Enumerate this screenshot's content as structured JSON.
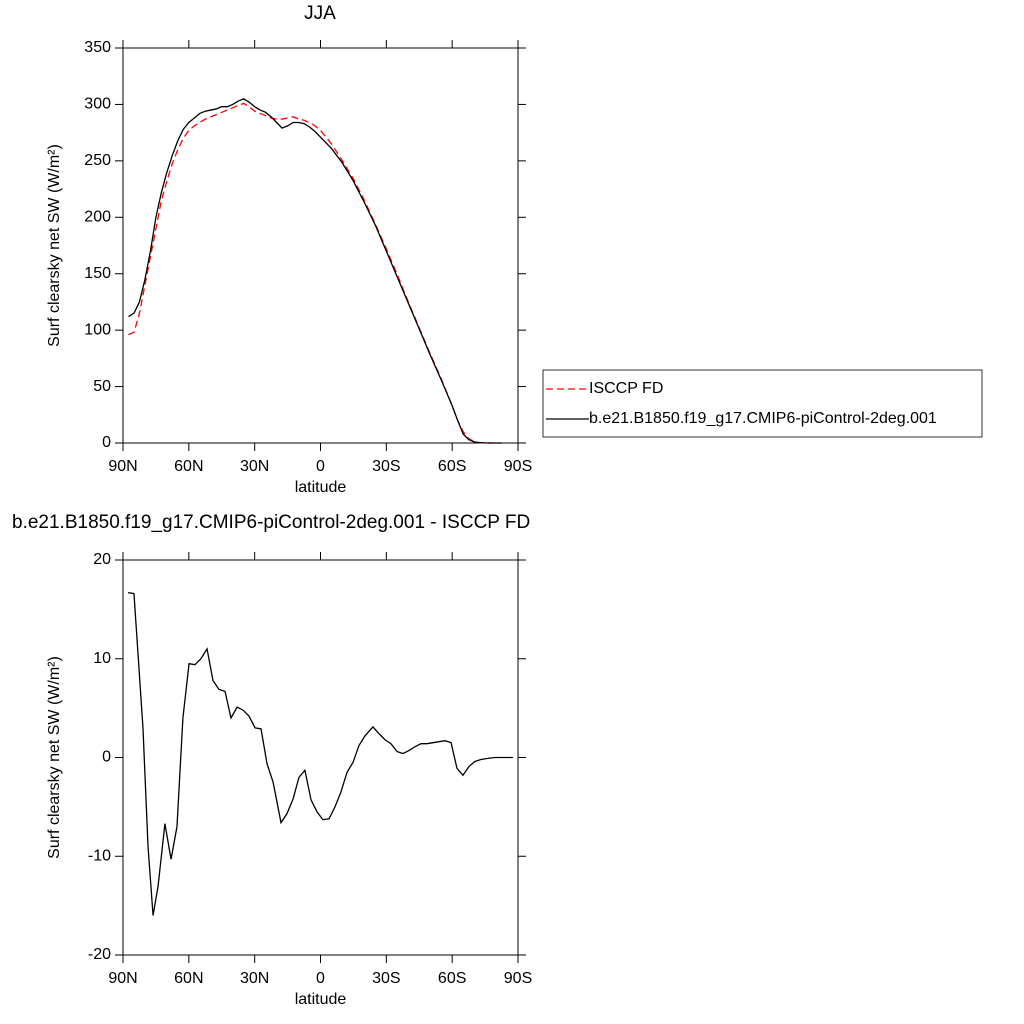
{
  "chart_data": [
    {
      "type": "line",
      "title": "JJA",
      "xlabel": "latitude",
      "ylabel": "Surf clearsky net SW (W/m²)",
      "xlim": [
        90,
        -90
      ],
      "xticks": [
        {
          "value": 90,
          "label": "90N"
        },
        {
          "value": 60,
          "label": "60N"
        },
        {
          "value": 30,
          "label": "30N"
        },
        0,
        {
          "value": -30,
          "label": "30S"
        },
        {
          "value": -60,
          "label": "60S"
        },
        {
          "value": -90,
          "label": "90S"
        }
      ],
      "ylim": [
        0,
        350
      ],
      "yticks": [
        0,
        50,
        100,
        150,
        200,
        250,
        300,
        350
      ],
      "legend": "right",
      "x": [
        87.5,
        85,
        82.5,
        80,
        77.5,
        75,
        72.5,
        70,
        67.5,
        65,
        62.5,
        60,
        57.5,
        55,
        52.5,
        50,
        47.5,
        45,
        42.5,
        40,
        37.5,
        35,
        32.5,
        30,
        27.5,
        25,
        22.5,
        20,
        17.5,
        15,
        12.5,
        10,
        7.5,
        5,
        2.5,
        0,
        -5,
        -10,
        -15,
        -20,
        -25,
        -30,
        -35,
        -40,
        -45,
        -50,
        -55,
        -60,
        -62.5,
        -65,
        -67.5,
        -70,
        -72.5,
        -75,
        -77.5,
        -80,
        -82.5
      ],
      "series": [
        {
          "name": "ISCCP FD",
          "color": "#ff0000",
          "line_style": "dashed",
          "values": [
            96,
            98,
            115,
            140,
            165,
            190,
            215,
            232,
            248,
            260,
            270,
            277,
            281,
            284,
            287,
            289,
            291,
            293,
            295,
            297,
            299,
            301,
            298,
            294,
            292,
            290,
            288,
            287,
            287,
            288,
            289,
            287,
            286,
            284,
            281,
            277,
            265,
            250,
            234,
            215,
            194,
            172,
            149,
            125,
            102,
            79,
            57,
            33,
            20,
            10,
            4,
            1,
            0.3,
            0.1,
            0,
            0,
            0
          ]
        },
        {
          "name": "b.e21.B1850.f19_g17.CMIP6-piControl-2deg.001",
          "color": "#000000",
          "line_style": "solid",
          "values": [
            112,
            115,
            125,
            145,
            170,
            200,
            222,
            240,
            255,
            268,
            278,
            284,
            288,
            292,
            294,
            295,
            296,
            298,
            298,
            300,
            303,
            305,
            302,
            298,
            295,
            293,
            289,
            284,
            279,
            281,
            284,
            284,
            283,
            280,
            276,
            271,
            261,
            248,
            232,
            213,
            193,
            170,
            147,
            124,
            101,
            78,
            56,
            33,
            20,
            8,
            3,
            1,
            0.3,
            0.1,
            0,
            0,
            0
          ]
        }
      ]
    },
    {
      "type": "line",
      "title": "b.e21.B1850.f19_g17.CMIP6-piControl-2deg.001 - ISCCP FD",
      "xlabel": "latitude",
      "ylabel": "Surf clearsky net SW (W/m²)",
      "xlim": [
        90,
        -90
      ],
      "xticks": [
        {
          "value": 90,
          "label": "90N"
        },
        {
          "value": 60,
          "label": "60N"
        },
        {
          "value": 30,
          "label": "30N"
        },
        0,
        {
          "value": -30,
          "label": "30S"
        },
        {
          "value": -60,
          "label": "60S"
        },
        {
          "value": -90,
          "label": "90S"
        }
      ],
      "ylim": [
        -20,
        20
      ],
      "yticks": [
        -20,
        -10,
        0,
        10,
        20
      ],
      "color": "#000000",
      "x": [
        87.7,
        85,
        80.9,
        78.6,
        76.3,
        74,
        70.9,
        68.1,
        65.4,
        62.7,
        59.9,
        57.2,
        54.5,
        51.7,
        49,
        46.3,
        43.5,
        40.8,
        38,
        35.3,
        32.6,
        29.8,
        27.1,
        24.4,
        21.6,
        18,
        15.3,
        12.5,
        9.8,
        7.1,
        4.3,
        1.6,
        -1.1,
        -3.9,
        -6.6,
        -9.3,
        -12.1,
        -14.8,
        -17.5,
        -20.3,
        -23.9,
        -26.7,
        -29.4,
        -32.1,
        -34.9,
        -37.6,
        -40.3,
        -43.1,
        -45.8,
        -48.5,
        -51.3,
        -54,
        -56.7,
        -59.5,
        -62.2,
        -64.9,
        -67.7,
        -70.4,
        -73.1,
        -75.9,
        -79.5,
        -87.7
      ],
      "values": [
        16.7,
        16.6,
        3,
        -9,
        -16,
        -13,
        -6.7,
        -10.3,
        -7,
        4,
        9.5,
        9.4,
        10,
        11,
        7.8,
        6.9,
        6.7,
        4,
        5.1,
        4.8,
        4.2,
        3,
        2.9,
        -0.6,
        -2.5,
        -6.6,
        -5.7,
        -4.2,
        -2,
        -1.3,
        -4.3,
        -5.5,
        -6.3,
        -6.2,
        -5,
        -3.5,
        -1.5,
        -0.5,
        1.2,
        2.2,
        3.1,
        2.4,
        1.8,
        1.4,
        0.6,
        0.4,
        0.7,
        1.1,
        1.4,
        1.4,
        1.5,
        1.6,
        1.7,
        1.5,
        -1.1,
        -1.8,
        -0.9,
        -0.4,
        -0.2,
        -0.1,
        0,
        0
      ]
    }
  ]
}
